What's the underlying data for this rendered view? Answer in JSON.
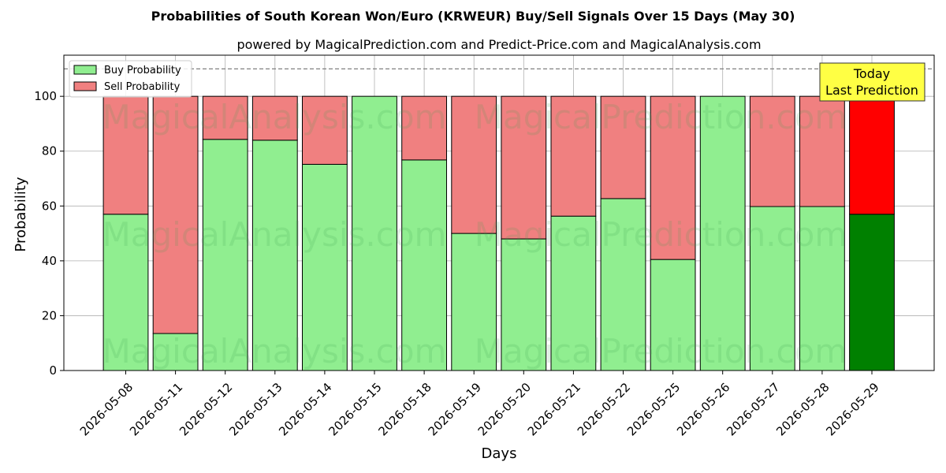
{
  "chart_data": {
    "type": "bar",
    "stacked": true,
    "title": "Probabilities of South Korean Won/Euro (KRWEUR) Buy/Sell Signals Over 15 Days (May 30)",
    "subtitle": "powered by MagicalPrediction.com and Predict-Price.com and MagicalAnalysis.com",
    "xlabel": "Days",
    "ylabel": "Probability",
    "ylim": [
      0,
      115
    ],
    "yticks": [
      0,
      20,
      40,
      60,
      80,
      100
    ],
    "grid": true,
    "legend_position": "top-left",
    "reference_line": 110,
    "categories": [
      "2026-05-08",
      "2026-05-11",
      "2026-05-12",
      "2026-05-13",
      "2026-05-14",
      "2026-05-15",
      "2026-05-18",
      "2026-05-19",
      "2026-05-20",
      "2026-05-21",
      "2026-05-22",
      "2026-05-25",
      "2026-05-26",
      "2026-05-27",
      "2026-05-28",
      "2026-05-29"
    ],
    "series": [
      {
        "name": "Buy Probability",
        "color": "#90ee90",
        "values": [
          57,
          13.5,
          84.3,
          84,
          75.2,
          100,
          76.8,
          50,
          48,
          56.3,
          62.7,
          40.5,
          100,
          59.8,
          59.8,
          57
        ]
      },
      {
        "name": "Sell Probability",
        "color": "#f08080",
        "values": [
          43,
          86.5,
          15.7,
          16,
          24.8,
          0,
          23.2,
          50,
          52,
          43.7,
          37.3,
          59.5,
          0,
          40.2,
          40.2,
          43
        ]
      }
    ],
    "highlight": {
      "category": "2026-05-29",
      "buy_color": "#008000",
      "sell_color": "#ff0000"
    },
    "annotation": {
      "lines": [
        "Today",
        "Last Prediction"
      ],
      "background": "#ffff44"
    },
    "watermarks": [
      "MagicalAnalysis.com",
      "MagicalPrediction.com"
    ]
  }
}
